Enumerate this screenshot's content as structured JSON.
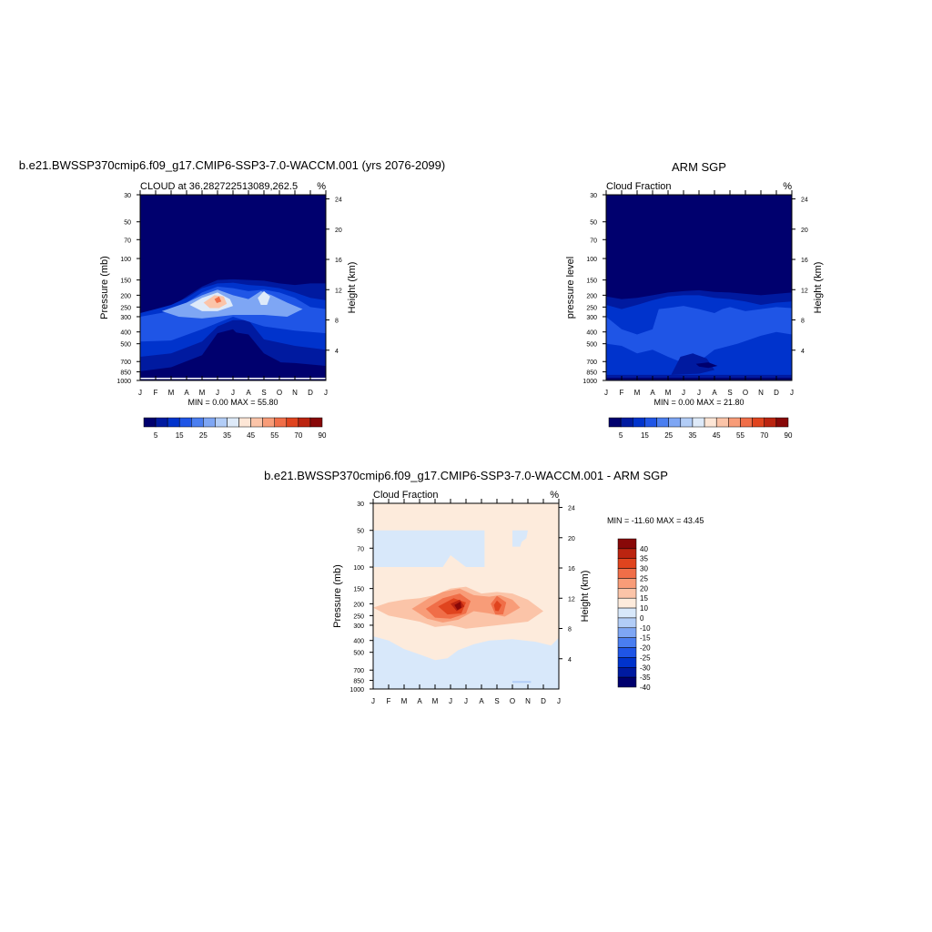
{
  "chart_data": [
    {
      "type": "heatmap",
      "title": "b.e21.BWSSP370cmip6.f09_g17.CMIP6-SSP3-7.0-WACCM.001 (yrs 2076-2099)",
      "subtitle_left": "CLOUD at 36.282722513089,262.5",
      "subtitle_right": "%",
      "xlabel": "",
      "ylabel": "Pressure (mb)",
      "ylabel_right": "Height (km)",
      "x_ticklabels": [
        "J",
        "F",
        "M",
        "A",
        "M",
        "J",
        "J",
        "A",
        "S",
        "O",
        "N",
        "D",
        "J"
      ],
      "y_ticks": [
        30,
        50,
        70,
        100,
        150,
        200,
        250,
        300,
        400,
        500,
        700,
        850,
        1000
      ],
      "y_ticklabels": [
        "30",
        "50",
        "70",
        "100",
        "150",
        "200",
        "250",
        "300",
        "400",
        "500",
        "700",
        "850",
        "1000"
      ],
      "height_ticks": [
        24,
        20,
        16,
        12,
        8,
        4
      ],
      "ylim": [
        30,
        1000
      ],
      "y_scale": "log",
      "stats": "MIN =   0.00 MAX =  55.80",
      "colorbar_labels": [
        "5",
        "15",
        "25",
        "35",
        "45",
        "55",
        "70",
        "90"
      ],
      "colorbar_levels": [
        5,
        10,
        15,
        20,
        25,
        30,
        35,
        40,
        45,
        50,
        55,
        60,
        70,
        80,
        90
      ],
      "features": [
        {
          "center_month": 5.3,
          "center_p": 215,
          "peak": 55.8
        },
        {
          "center_month": 8.0,
          "center_p": 205,
          "peak": 38
        }
      ]
    },
    {
      "type": "heatmap",
      "title": "ARM SGP",
      "subtitle_left": "Cloud Fraction",
      "subtitle_right": "%",
      "xlabel": "",
      "ylabel": "pressure level",
      "ylabel_right": "Height (km)",
      "x_ticklabels": [
        "J",
        "F",
        "M",
        "A",
        "M",
        "J",
        "J",
        "A",
        "S",
        "O",
        "N",
        "D",
        "J"
      ],
      "y_ticks": [
        30,
        50,
        70,
        100,
        150,
        200,
        250,
        300,
        400,
        500,
        700,
        850,
        1000
      ],
      "y_ticklabels": [
        "30",
        "50",
        "70",
        "100",
        "150",
        "200",
        "250",
        "300",
        "400",
        "500",
        "700",
        "850",
        "1000"
      ],
      "height_ticks": [
        24,
        20,
        16,
        12,
        8,
        4
      ],
      "ylim": [
        30,
        1000
      ],
      "y_scale": "log",
      "stats": "MIN =   0.00 MAX =  21.80",
      "colorbar_labels": [
        "5",
        "15",
        "25",
        "35",
        "45",
        "55",
        "70",
        "90"
      ],
      "colorbar_levels": [
        5,
        10,
        15,
        20,
        25,
        30,
        35,
        40,
        45,
        50,
        55,
        60,
        70,
        80,
        90
      ]
    },
    {
      "type": "heatmap",
      "title": "b.e21.BWSSP370cmip6.f09_g17.CMIP6-SSP3-7.0-WACCM.001 - ARM SGP",
      "subtitle_left": "Cloud Fraction",
      "subtitle_right": "%",
      "xlabel": "",
      "ylabel": "Pressure (mb)",
      "ylabel_right": "Height (km)",
      "x_ticklabels": [
        "J",
        "F",
        "M",
        "A",
        "M",
        "J",
        "J",
        "A",
        "S",
        "O",
        "N",
        "D",
        "J"
      ],
      "y_ticks": [
        30,
        50,
        70,
        100,
        150,
        200,
        250,
        300,
        400,
        500,
        700,
        850,
        1000
      ],
      "y_ticklabels": [
        "30",
        "50",
        "70",
        "100",
        "150",
        "200",
        "250",
        "300",
        "400",
        "500",
        "700",
        "850",
        "1000"
      ],
      "height_ticks": [
        24,
        20,
        16,
        12,
        8,
        4
      ],
      "ylim": [
        30,
        1000
      ],
      "y_scale": "log",
      "stats": "MIN = -11.60 MAX =  43.45",
      "colorbar_labels": [
        "40",
        "35",
        "30",
        "25",
        "20",
        "15",
        "10",
        "0",
        "-10",
        "-15",
        "-20",
        "-25",
        "-30",
        "-35",
        "-40"
      ],
      "colorbar_levels": [
        -40,
        -35,
        -30,
        -25,
        -20,
        -15,
        -10,
        0,
        10,
        15,
        20,
        25,
        30,
        35,
        40
      ],
      "features": [
        {
          "center_month": 5.8,
          "center_p": 205,
          "peak": 43.45
        },
        {
          "center_month": 8.0,
          "center_p": 205,
          "peak": 35
        }
      ]
    }
  ],
  "colors": {
    "cloud_scale": [
      "#00006e",
      "#001aa0",
      "#0033cc",
      "#1f55e6",
      "#4a7ef0",
      "#7ea6f4",
      "#b2cdf7",
      "#deeaf9",
      "#fde6d6",
      "#fbc4a8",
      "#f89c78",
      "#f06e48",
      "#e0441e",
      "#bb2410",
      "#880808"
    ],
    "diff_scale": [
      "#00006e",
      "#001aa0",
      "#0033cc",
      "#1f55e6",
      "#4a7ef0",
      "#7ea6f4",
      "#b2cdf7",
      "#d8e8fa",
      "#fdebdc",
      "#fbc4a8",
      "#f89c78",
      "#f06e48",
      "#e0441e",
      "#bb2410",
      "#880808"
    ]
  }
}
